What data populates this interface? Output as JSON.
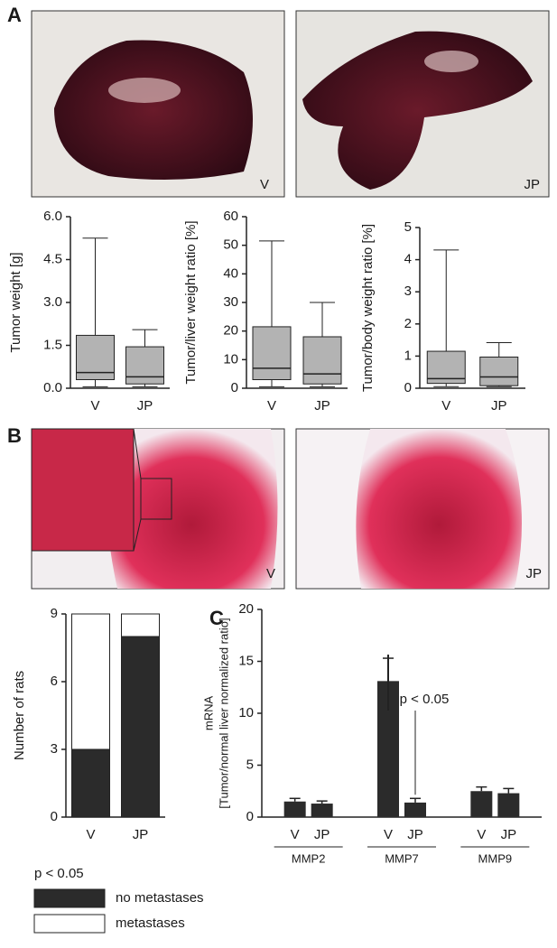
{
  "figure": {
    "panel_labels": [
      "A",
      "B",
      "C"
    ],
    "photo_labels": [
      "V",
      "JP",
      "V",
      "JP"
    ]
  },
  "chart_data": [
    {
      "type": "box",
      "ylabel": "Tumor weight [g]",
      "categories": [
        "V",
        "JP"
      ],
      "boxes": [
        {
          "min": 0.05,
          "q1": 0.3,
          "median": 0.55,
          "q3": 1.85,
          "max": 5.25
        },
        {
          "min": 0.05,
          "q1": 0.15,
          "median": 0.4,
          "q3": 1.45,
          "max": 2.05
        }
      ],
      "color": "#b3b3b3",
      "ylim": [
        0,
        6
      ],
      "yticks": [
        {
          "value": 0,
          "label": "0.0"
        },
        1.5,
        {
          "value": 3,
          "label": "3.0"
        },
        4.5,
        {
          "value": 6,
          "label": "6.0"
        }
      ]
    },
    {
      "type": "box",
      "ylabel": "Tumor/liver weight ratio [%]",
      "categories": [
        "V",
        "JP"
      ],
      "boxes": [
        {
          "min": 0.5,
          "q1": 3,
          "median": 7,
          "q3": 21.5,
          "max": 51.5
        },
        {
          "min": 0.5,
          "q1": 1.5,
          "median": 5,
          "q3": 18,
          "max": 30
        }
      ],
      "color": "#b3b3b3",
      "ylim": [
        0,
        60
      ],
      "yticks": [
        0,
        10,
        20,
        30,
        40,
        50,
        60
      ]
    },
    {
      "type": "box",
      "ylabel": "Tumor/body weight ratio [%]",
      "categories": [
        "V",
        "JP"
      ],
      "boxes": [
        {
          "min": 0.05,
          "q1": 0.15,
          "median": 0.3,
          "q3": 1.15,
          "max": 4.3
        },
        {
          "min": 0.05,
          "q1": 0.08,
          "median": 0.35,
          "q3": 0.97,
          "max": 1.42
        }
      ],
      "color": "#b3b3b3",
      "ylim": [
        0,
        5
      ],
      "yticks": [
        0,
        1,
        2,
        3,
        4,
        5
      ]
    },
    {
      "type": "stacked_bar",
      "ylabel": "Number of rats",
      "categories": [
        "V",
        "JP"
      ],
      "series": [
        {
          "name": "no metastases",
          "color": "#2b2b2b",
          "values": [
            3,
            8
          ]
        },
        {
          "name": "metastases",
          "color": "#ffffff",
          "values": [
            6,
            1
          ]
        }
      ],
      "annotation": "p < 0.05",
      "ylim": [
        0,
        9
      ],
      "yticks": [
        0,
        3,
        6,
        9
      ]
    },
    {
      "type": "bar",
      "ylabel": [
        "mRNA",
        "[Tumor/normal liver normalized ratio]"
      ],
      "categories": [
        "MMP2",
        "MMP7",
        "MMP9"
      ],
      "series": [
        {
          "name": "V",
          "color": "#2b2b2b",
          "values": [
            1.5,
            13.1,
            2.5
          ],
          "errors": [
            0.3,
            2.2,
            0.4
          ]
        },
        {
          "name": "JP",
          "color": "#2b2b2b",
          "values": [
            1.3,
            1.4,
            2.3
          ],
          "errors": [
            0.25,
            0.4,
            0.45
          ]
        }
      ],
      "annotation": "p < 0.05",
      "ylim": [
        0,
        20
      ],
      "yticks": [
        0,
        5,
        10,
        15,
        20
      ]
    }
  ]
}
